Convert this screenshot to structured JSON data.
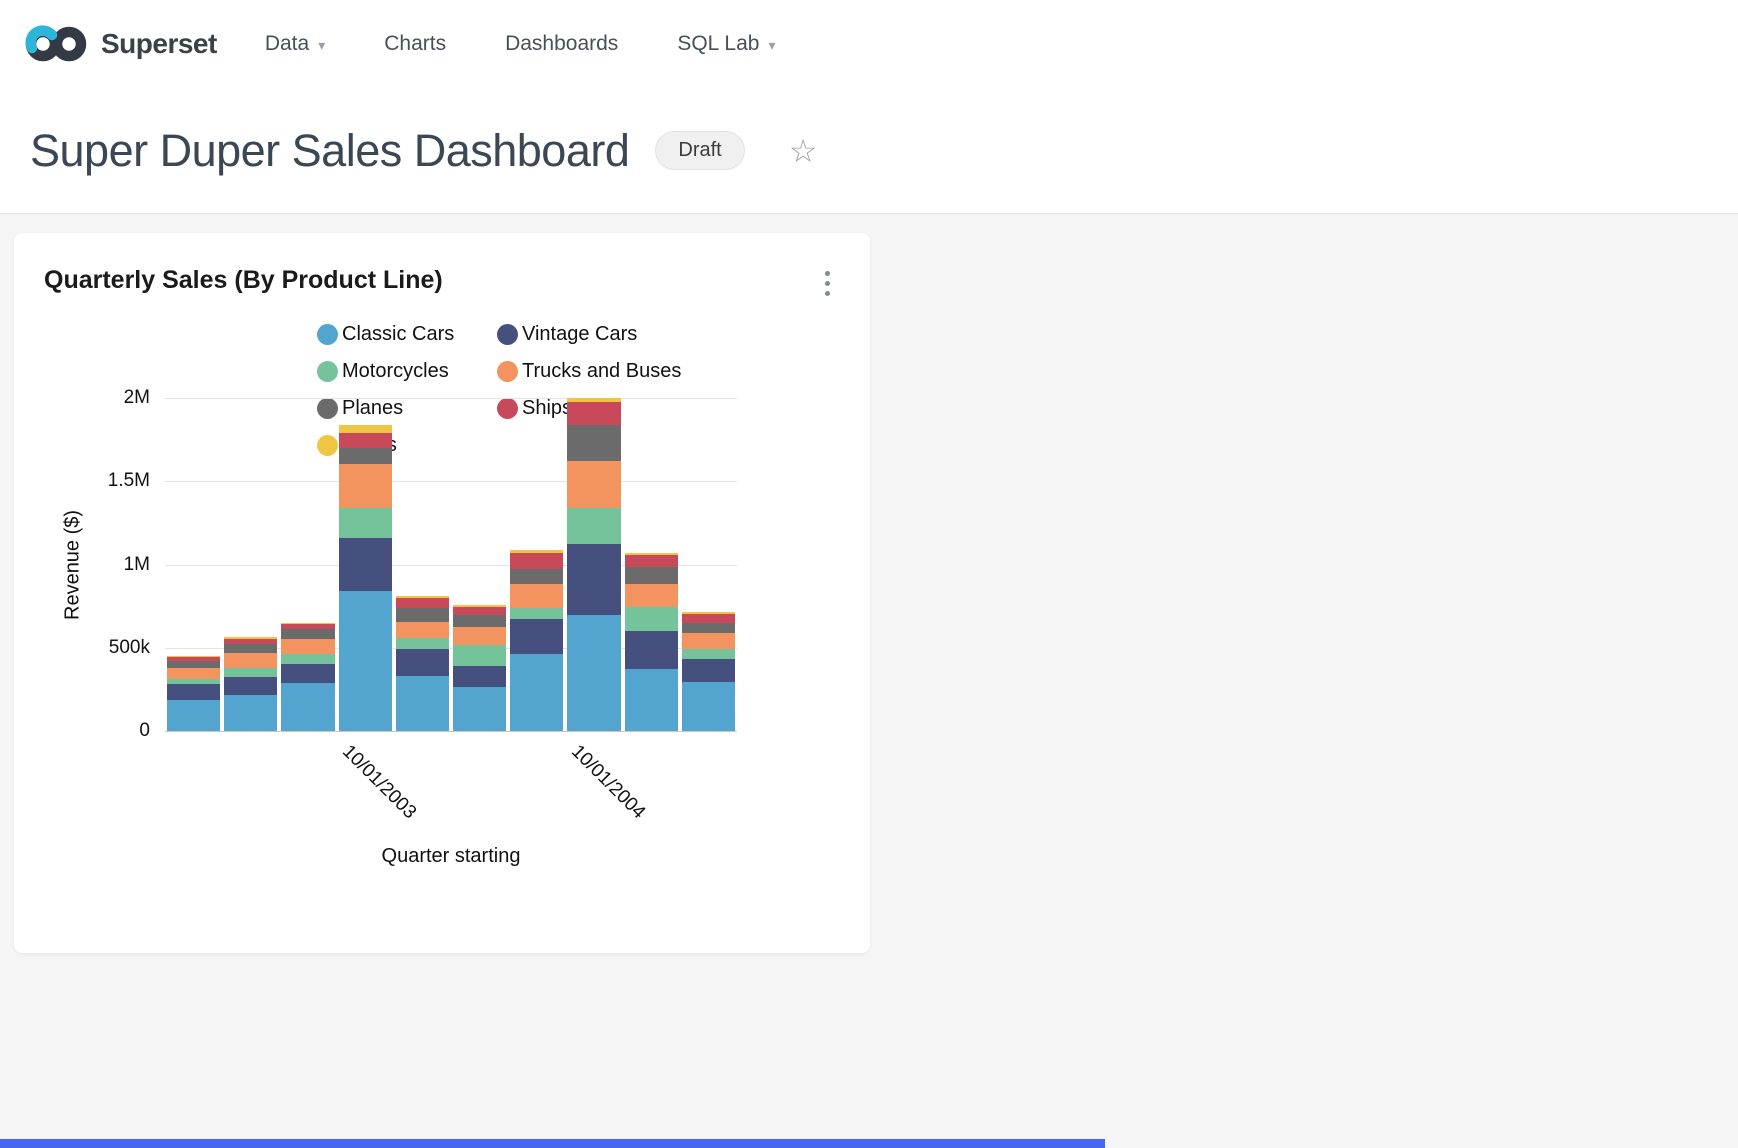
{
  "nav": {
    "brand": "Superset",
    "caret_icon": "▾",
    "items": [
      {
        "label": "Data",
        "has_caret": true
      },
      {
        "label": "Charts",
        "has_caret": false
      },
      {
        "label": "Dashboards",
        "has_caret": false
      },
      {
        "label": "SQL Lab",
        "has_caret": true
      }
    ]
  },
  "header": {
    "title": "Super Duper Sales Dashboard",
    "status_badge": "Draft",
    "favorite_icon_glyph": "☆"
  },
  "card": {
    "title": "Quarterly Sales (By Product Line)"
  },
  "chart_data": {
    "type": "bar",
    "stacked": true,
    "title": "Quarterly Sales (By Product Line)",
    "xlabel": "Quarter starting",
    "ylabel": "Revenue ($)",
    "ylim": [
      0,
      2000000
    ],
    "y_tick_labels": [
      "0",
      "500k",
      "1M",
      "1.5M",
      "2M"
    ],
    "grid": true,
    "legend_position": "top",
    "categories": [
      "01/01/2003",
      "04/01/2003",
      "07/01/2003",
      "10/01/2003",
      "01/01/2004",
      "04/01/2004",
      "07/01/2004",
      "10/01/2004",
      "01/01/2005",
      "04/01/2005"
    ],
    "visible_x_ticks": [
      {
        "index": 3,
        "label": "10/01/2003"
      },
      {
        "index": 7,
        "label": "10/01/2004"
      }
    ],
    "series": [
      {
        "name": "Classic Cars",
        "color": "#53a4cf",
        "values": [
          185000,
          215000,
          290000,
          840000,
          330000,
          265000,
          460000,
          700000,
          370000,
          295000
        ]
      },
      {
        "name": "Vintage Cars",
        "color": "#46507f",
        "values": [
          100000,
          110000,
          115000,
          320000,
          165000,
          125000,
          210000,
          425000,
          230000,
          140000
        ]
      },
      {
        "name": "Motorcycles",
        "color": "#74c39b",
        "values": [
          25000,
          55000,
          60000,
          180000,
          65000,
          125000,
          70000,
          215000,
          145000,
          60000
        ]
      },
      {
        "name": "Trucks and Buses",
        "color": "#f29360",
        "values": [
          70000,
          90000,
          90000,
          265000,
          95000,
          110000,
          140000,
          280000,
          140000,
          95000
        ]
      },
      {
        "name": "Planes",
        "color": "#6b6b6b",
        "values": [
          40000,
          50000,
          55000,
          95000,
          85000,
          75000,
          90000,
          220000,
          100000,
          60000
        ]
      },
      {
        "name": "Ships",
        "color": "#c84a5a",
        "values": [
          25000,
          35000,
          30000,
          90000,
          60000,
          45000,
          100000,
          135000,
          75000,
          55000
        ]
      },
      {
        "name": "Trains",
        "color": "#eec643",
        "values": [
          5000,
          8000,
          10000,
          45000,
          12000,
          10000,
          18000,
          25000,
          12000,
          10000
        ]
      }
    ]
  },
  "ui_colors": {
    "bottom_strip": "#4666f6",
    "body_background": "#f5f5f5"
  }
}
